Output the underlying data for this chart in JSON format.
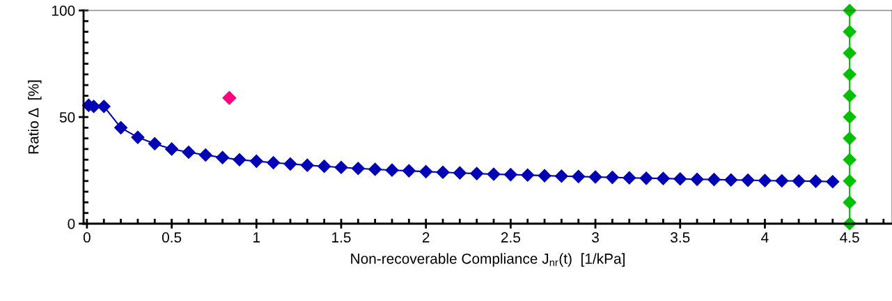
{
  "chart_data": {
    "type": "line",
    "xlabel": "Non-recoverable Compliance J$_{nr}$(t)  [1/kPa]",
    "ylabel": "Ratio Δ  [%]",
    "xlim": [
      -0.02,
      4.75
    ],
    "ylim": [
      0,
      100
    ],
    "xticks": [
      {
        "value": 0,
        "label": "0"
      },
      0.5,
      1,
      1.5,
      2,
      2.5,
      3,
      3.5,
      4,
      4.5
    ],
    "yticks": [
      0,
      50,
      100
    ],
    "marker": "diamond",
    "line_style": "solid",
    "grid": false,
    "legend": false,
    "series": [
      {
        "color": "#0000b4",
        "x": [
          0.01,
          0.04,
          0.1,
          0.2,
          0.3,
          0.4,
          0.5,
          0.6,
          0.7,
          0.8,
          0.9,
          1.0,
          1.1,
          1.2,
          1.3,
          1.4,
          1.5,
          1.6,
          1.7,
          1.8,
          1.9,
          2.0,
          2.1,
          2.2,
          2.3,
          2.4,
          2.5,
          2.6,
          2.7,
          2.8,
          2.9,
          3.0,
          3.1,
          3.2,
          3.3,
          3.4,
          3.5,
          3.6,
          3.7,
          3.8,
          3.9,
          4.0,
          4.1,
          4.2,
          4.3,
          4.4
        ],
        "values": [
          55.5,
          55,
          55,
          45,
          40.5,
          37.5,
          35,
          33.5,
          32.2,
          31,
          30,
          29.3,
          28.6,
          28,
          27.4,
          26.9,
          26.4,
          25.9,
          25.5,
          25.1,
          24.8,
          24.4,
          24.1,
          23.8,
          23.5,
          23.2,
          23,
          22.8,
          22.5,
          22.3,
          22.1,
          21.9,
          21.7,
          21.5,
          21.3,
          21.2,
          21,
          20.8,
          20.7,
          20.5,
          20.4,
          20.2,
          20.1,
          20,
          19.9,
          19.7
        ]
      },
      {
        "type": "scatter",
        "color": "#ff0080",
        "x": [
          0.84
        ],
        "values": [
          59
        ]
      },
      {
        "color": "#00c000",
        "x": [
          4.5,
          4.5,
          4.5,
          4.5,
          4.5,
          4.5,
          4.5,
          4.5,
          4.5,
          4.5,
          4.5
        ],
        "values": [
          0,
          10,
          20,
          30,
          40,
          50,
          60,
          70,
          80,
          90,
          100
        ]
      }
    ]
  }
}
